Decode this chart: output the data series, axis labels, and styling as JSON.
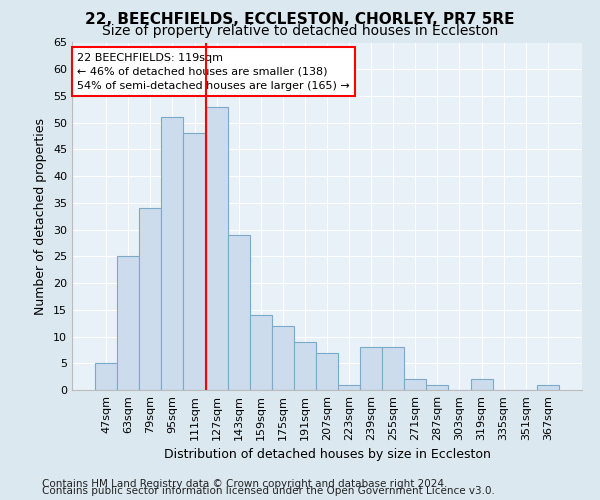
{
  "title1": "22, BEECHFIELDS, ECCLESTON, CHORLEY, PR7 5RE",
  "title2": "Size of property relative to detached houses in Eccleston",
  "xlabel": "Distribution of detached houses by size in Eccleston",
  "ylabel": "Number of detached properties",
  "footer1": "Contains HM Land Registry data © Crown copyright and database right 2024.",
  "footer2": "Contains public sector information licensed under the Open Government Licence v3.0.",
  "categories": [
    "47sqm",
    "63sqm",
    "79sqm",
    "95sqm",
    "111sqm",
    "127sqm",
    "143sqm",
    "159sqm",
    "175sqm",
    "191sqm",
    "207sqm",
    "223sqm",
    "239sqm",
    "255sqm",
    "271sqm",
    "287sqm",
    "303sqm",
    "319sqm",
    "335sqm",
    "351sqm",
    "367sqm"
  ],
  "values": [
    5,
    25,
    34,
    51,
    48,
    53,
    29,
    14,
    12,
    9,
    7,
    1,
    8,
    8,
    2,
    1,
    0,
    2,
    0,
    0,
    1
  ],
  "bar_color": "#ccdcec",
  "bar_edge_color": "#7aaaca",
  "vline_x": 4.5,
  "vline_color": "red",
  "annotation_line1": "22 BEECHFIELDS: 119sqm",
  "annotation_line2": "← 46% of detached houses are smaller (138)",
  "annotation_line3": "54% of semi-detached houses are larger (165) →",
  "ylim": [
    0,
    65
  ],
  "yticks": [
    0,
    5,
    10,
    15,
    20,
    25,
    30,
    35,
    40,
    45,
    50,
    55,
    60,
    65
  ],
  "bg_color": "#dce8f0",
  "plot_bg_color": "#e8f0f8",
  "grid_color": "#ffffff",
  "title1_fontsize": 11,
  "title2_fontsize": 10,
  "xlabel_fontsize": 9,
  "ylabel_fontsize": 9,
  "tick_fontsize": 8,
  "footer_fontsize": 7.5,
  "ann_fontsize": 8
}
